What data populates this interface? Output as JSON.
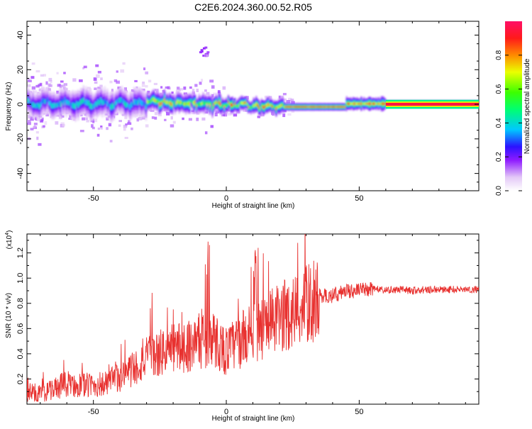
{
  "title": "C2E6.2024.360.00.52.R05",
  "chart_data": [
    {
      "type": "heatmap",
      "xlabel": "Height of straight line (km)",
      "ylabel": "Frequency (Hz)",
      "xlim": [
        -75,
        95
      ],
      "ylim": [
        -50,
        48
      ],
      "xticks": [
        -50,
        0,
        50
      ],
      "yticks": [
        -40,
        -20,
        0,
        20,
        40
      ],
      "colorbar": {
        "label": "Normalized spectral amplitude",
        "range": [
          0,
          1
        ],
        "ticks": [
          0.0,
          0.2,
          0.4,
          0.6,
          0.8
        ]
      }
    },
    {
      "type": "line",
      "xlabel": "Height of straight line (km)",
      "ylabel": "SNR (10 * v/v)",
      "yscale_label": "(x10",
      "yscale_exp": "4",
      "yscale_close": ")",
      "xlim": [
        -75,
        95
      ],
      "ylim": [
        0,
        1.35
      ],
      "xticks": [
        -50,
        0,
        50
      ],
      "yticks": [
        0.2,
        0.4,
        0.6,
        0.8,
        1.0,
        1.2
      ],
      "series_color": "#e8312f",
      "series": [
        {
          "x": [
            -75,
            -70,
            -65,
            -60,
            -55,
            -50,
            -45,
            -40,
            -35,
            -30,
            -25,
            -20,
            -15,
            -10,
            -5,
            0,
            5,
            10,
            15,
            20,
            25,
            30,
            35,
            40,
            45,
            50,
            55,
            60,
            65,
            70,
            75,
            80,
            85,
            90,
            95
          ],
          "y": [
            0.1,
            0.08,
            0.12,
            0.16,
            0.15,
            0.15,
            0.16,
            0.22,
            0.28,
            0.36,
            0.4,
            0.45,
            0.46,
            0.5,
            0.52,
            0.42,
            0.5,
            0.58,
            0.62,
            0.68,
            0.74,
            0.78,
            0.86,
            0.86,
            0.9,
            0.9,
            0.92,
            0.9,
            0.91,
            0.9,
            0.91,
            0.91,
            0.91,
            0.91,
            0.91
          ]
        }
      ]
    }
  ]
}
